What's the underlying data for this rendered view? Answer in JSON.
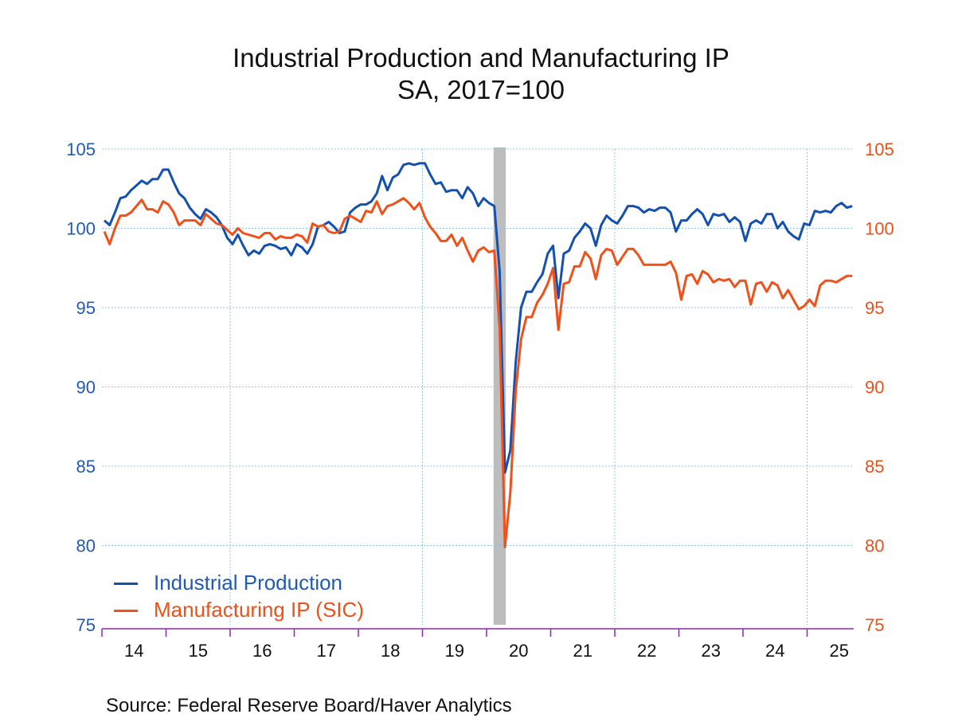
{
  "chart_data": {
    "type": "line",
    "title": "Industrial Production and Manufacturing IP",
    "subtitle": "SA, 2017=100",
    "source": "Source:  Federal Reserve Board/Haver Analytics",
    "x_start": "2014-01",
    "x_end": "2025-09",
    "frequency": "monthly",
    "x_tick_labels": [
      "14",
      "15",
      "16",
      "17",
      "18",
      "19",
      "20",
      "21",
      "22",
      "23",
      "24",
      "25"
    ],
    "y_left": {
      "ylim": [
        75,
        105
      ],
      "ticks": [
        "75",
        "80",
        "85",
        "90",
        "95",
        "100",
        "105"
      ],
      "color": "#1f5bb5"
    },
    "y_right": {
      "ylim": [
        75,
        105
      ],
      "ticks": [
        "75",
        "80",
        "85",
        "90",
        "95",
        "100",
        "105"
      ],
      "color": "#e8521c"
    },
    "recession_shading": {
      "start": "2020-02",
      "end": "2020-04",
      "color": "#bdbdbd"
    },
    "grid": true,
    "legend_placement": "bottom-left",
    "series": [
      {
        "name": "Industrial Production",
        "color": "#1450b0",
        "axis": "left",
        "values": [
          100.5,
          100.2,
          101.0,
          101.9,
          102.0,
          102.4,
          102.7,
          103.0,
          102.8,
          103.1,
          103.1,
          103.7,
          103.7,
          102.9,
          102.2,
          101.9,
          101.3,
          100.9,
          100.6,
          101.2,
          101.0,
          100.7,
          100.2,
          99.4,
          99.0,
          99.6,
          98.9,
          98.3,
          98.6,
          98.4,
          98.9,
          99.0,
          98.9,
          98.7,
          98.8,
          98.3,
          99.0,
          98.8,
          98.4,
          99.0,
          100.1,
          100.2,
          100.4,
          100.1,
          99.7,
          99.8,
          101.0,
          101.3,
          101.5,
          101.5,
          101.7,
          102.2,
          103.3,
          102.4,
          103.2,
          103.4,
          104.0,
          104.1,
          104.0,
          104.1,
          104.1,
          103.4,
          102.8,
          102.9,
          102.3,
          102.4,
          102.4,
          101.9,
          102.6,
          102.2,
          101.4,
          101.9,
          101.6,
          101.4,
          97.3,
          84.6,
          86.0,
          91.5,
          95.0,
          96.0,
          96.0,
          96.6,
          97.1,
          98.4,
          98.9,
          95.6,
          98.4,
          98.6,
          99.4,
          99.8,
          100.3,
          100.0,
          98.9,
          100.2,
          100.8,
          100.5,
          100.3,
          100.8,
          101.4,
          101.4,
          101.3,
          101.0,
          101.2,
          101.1,
          101.3,
          101.3,
          101.0,
          99.8,
          100.5,
          100.5,
          100.9,
          101.2,
          100.9,
          100.2,
          100.9,
          100.8,
          100.9,
          100.4,
          100.7,
          100.4,
          99.2,
          100.3,
          100.5,
          100.3,
          100.9,
          100.9,
          100.0,
          100.4,
          99.8,
          99.5,
          99.3,
          100.3,
          100.2,
          101.1,
          101.0,
          101.1,
          101.0,
          101.4,
          101.6,
          101.3,
          101.4
        ]
      },
      {
        "name": "Manufacturing IP (SIC)",
        "color": "#f0501a",
        "axis": "right",
        "values": [
          99.8,
          99.0,
          100.0,
          100.8,
          100.8,
          101.0,
          101.4,
          101.8,
          101.2,
          101.2,
          101.0,
          101.7,
          101.5,
          101.0,
          100.2,
          100.5,
          100.5,
          100.5,
          100.2,
          100.9,
          100.6,
          100.3,
          100.2,
          99.9,
          99.6,
          100.0,
          99.7,
          99.6,
          99.5,
          99.4,
          99.7,
          99.7,
          99.3,
          99.5,
          99.4,
          99.4,
          99.6,
          99.5,
          99.1,
          100.3,
          100.1,
          100.2,
          99.8,
          99.7,
          99.8,
          100.6,
          100.8,
          100.6,
          100.4,
          101.1,
          101.0,
          101.7,
          100.9,
          101.4,
          101.5,
          101.7,
          101.9,
          101.6,
          101.2,
          101.6,
          100.7,
          100.1,
          99.7,
          99.2,
          99.2,
          99.6,
          98.9,
          99.4,
          98.6,
          97.9,
          98.6,
          98.8,
          98.5,
          98.6,
          93.7,
          79.9,
          83.3,
          89.7,
          93.0,
          94.4,
          94.4,
          95.3,
          95.8,
          96.5,
          97.5,
          93.6,
          96.5,
          96.6,
          97.6,
          97.6,
          98.5,
          98.1,
          96.8,
          98.3,
          98.7,
          98.6,
          97.7,
          98.2,
          98.7,
          98.7,
          98.3,
          97.7,
          97.7,
          97.7,
          97.7,
          97.7,
          97.9,
          97.2,
          95.5,
          97.0,
          97.1,
          96.5,
          97.3,
          97.1,
          96.6,
          96.8,
          96.7,
          96.8,
          96.3,
          96.7,
          96.7,
          95.2,
          96.5,
          96.6,
          96.0,
          96.6,
          96.4,
          95.6,
          96.1,
          95.5,
          94.9,
          95.1,
          95.5,
          95.1,
          96.4,
          96.7,
          96.7,
          96.6,
          96.8,
          97.0,
          97.0
        ]
      }
    ]
  }
}
